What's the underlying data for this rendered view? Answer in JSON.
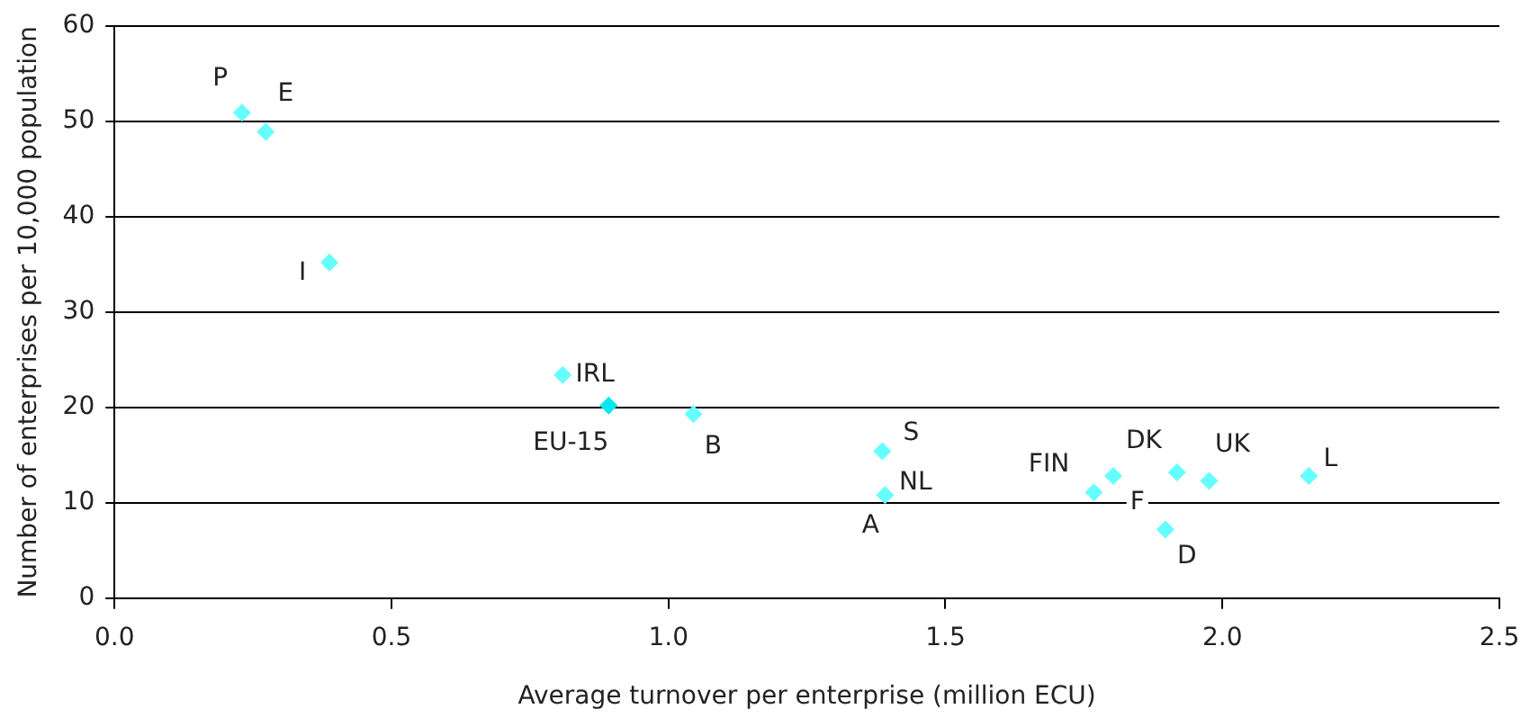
{
  "chart_data": {
    "type": "scatter",
    "xlabel": "Average turnover per enterprise (million ECU)",
    "ylabel": "Number of enterprises per 10,000 population",
    "x": [
      0.23,
      0.273,
      0.388,
      0.809,
      0.892,
      1.045,
      1.386,
      1.391,
      1.768,
      1.803,
      1.918,
      1.976,
      1.897,
      2.156
    ],
    "values": [
      50.9,
      48.9,
      35.2,
      23.4,
      20.2,
      19.3,
      15.4,
      10.8,
      11.1,
      12.8,
      13.2,
      12.3,
      7.2,
      12.8
    ],
    "colors": [
      "#66ffff",
      "#66ffff",
      "#66ffff",
      "#66ffff",
      "#00e8f0",
      "#66ffff",
      "#66ffff",
      "#66ffff",
      "#66ffff",
      "#66ffff",
      "#66ffff",
      "#66ffff",
      "#66ffff",
      "#66ffff"
    ],
    "marker": "diamond",
    "annotations": [
      {
        "text": "P",
        "x": 0.23,
        "y": 50.9
      },
      {
        "text": "E",
        "x": 0.273,
        "y": 48.9
      },
      {
        "text": "I",
        "x": 0.388,
        "y": 35.2
      },
      {
        "text": "IRL",
        "x": 0.809,
        "y": 23.4
      },
      {
        "text": "EU-15",
        "x": 0.892,
        "y": 20.2
      },
      {
        "text": "B",
        "x": 1.045,
        "y": 19.3
      },
      {
        "text": "S",
        "x": 1.386,
        "y": 15.4
      },
      {
        "text": "NL",
        "x": 1.391,
        "y": 10.8
      },
      {
        "text": "A",
        "x": 1.391,
        "y": 10.8
      },
      {
        "text": "FIN",
        "x": 1.768,
        "y": 11.1
      },
      {
        "text": "DK",
        "x": 1.803,
        "y": 12.8
      },
      {
        "text": "F",
        "x": 1.918,
        "y": 13.2
      },
      {
        "text": "UK",
        "x": 1.976,
        "y": 12.3
      },
      {
        "text": "D",
        "x": 1.897,
        "y": 7.2
      },
      {
        "text": "L",
        "x": 2.156,
        "y": 12.8
      }
    ],
    "xlim": [
      0,
      2.5
    ],
    "xticks": [
      {
        "value": 0,
        "label": "0.0"
      },
      {
        "value": 0.5,
        "label": "0.5"
      },
      {
        "value": 1,
        "label": "1.0"
      },
      {
        "value": 1.5,
        "label": "1.5"
      },
      {
        "value": 2,
        "label": "2.0"
      },
      {
        "value": 2.5,
        "label": "2.5"
      }
    ],
    "ylim": [
      0,
      60
    ],
    "yticks": [
      0,
      10,
      20,
      30,
      40,
      50,
      60
    ],
    "grid": "y",
    "legend": false
  }
}
